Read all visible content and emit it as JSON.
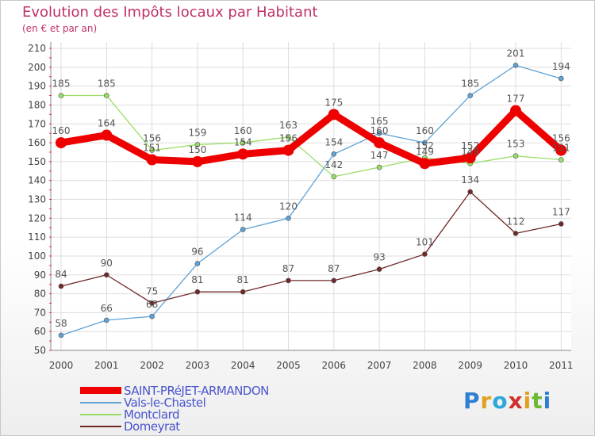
{
  "header": {
    "title": "Evolution des Impôts locaux par Habitant",
    "subtitle": "(en € et par an)"
  },
  "logo_text": "Proxiti",
  "chart_data": {
    "type": "line",
    "title": "Evolution des Impôts locaux par Habitant",
    "subtitle": "(en € et par an)",
    "xlabel": "",
    "ylabel": "",
    "ylim": [
      50,
      210
    ],
    "yticks": [
      50,
      60,
      70,
      80,
      90,
      100,
      110,
      120,
      130,
      140,
      150,
      160,
      170,
      180,
      190,
      200,
      210
    ],
    "categories": [
      "2000",
      "2001",
      "2002",
      "2003",
      "2004",
      "2005",
      "2006",
      "2007",
      "2008",
      "2009",
      "2010",
      "2011"
    ],
    "grid": true,
    "legend_position": "bottom-left",
    "series": [
      {
        "name": "SAINT-PRéJET-ARMANDON",
        "color": "#ee0000",
        "emphasis": true,
        "values": [
          160,
          164,
          151,
          150,
          154,
          156,
          175,
          160,
          149,
          152,
          177,
          156
        ]
      },
      {
        "name": "Vals-le-Chastel",
        "color": "#5ea2d6",
        "emphasis": false,
        "values": [
          58,
          66,
          68,
          96,
          114,
          120,
          154,
          165,
          160,
          185,
          201,
          194
        ]
      },
      {
        "name": "Montclard",
        "color": "#99dd66",
        "emphasis": false,
        "values": [
          185,
          185,
          156,
          159,
          160,
          163,
          142,
          147,
          152,
          149,
          153,
          151
        ]
      },
      {
        "name": "Domeyrat",
        "color": "#702828",
        "emphasis": false,
        "values": [
          84,
          90,
          75,
          81,
          81,
          87,
          87,
          93,
          101,
          134,
          112,
          117
        ]
      }
    ]
  }
}
